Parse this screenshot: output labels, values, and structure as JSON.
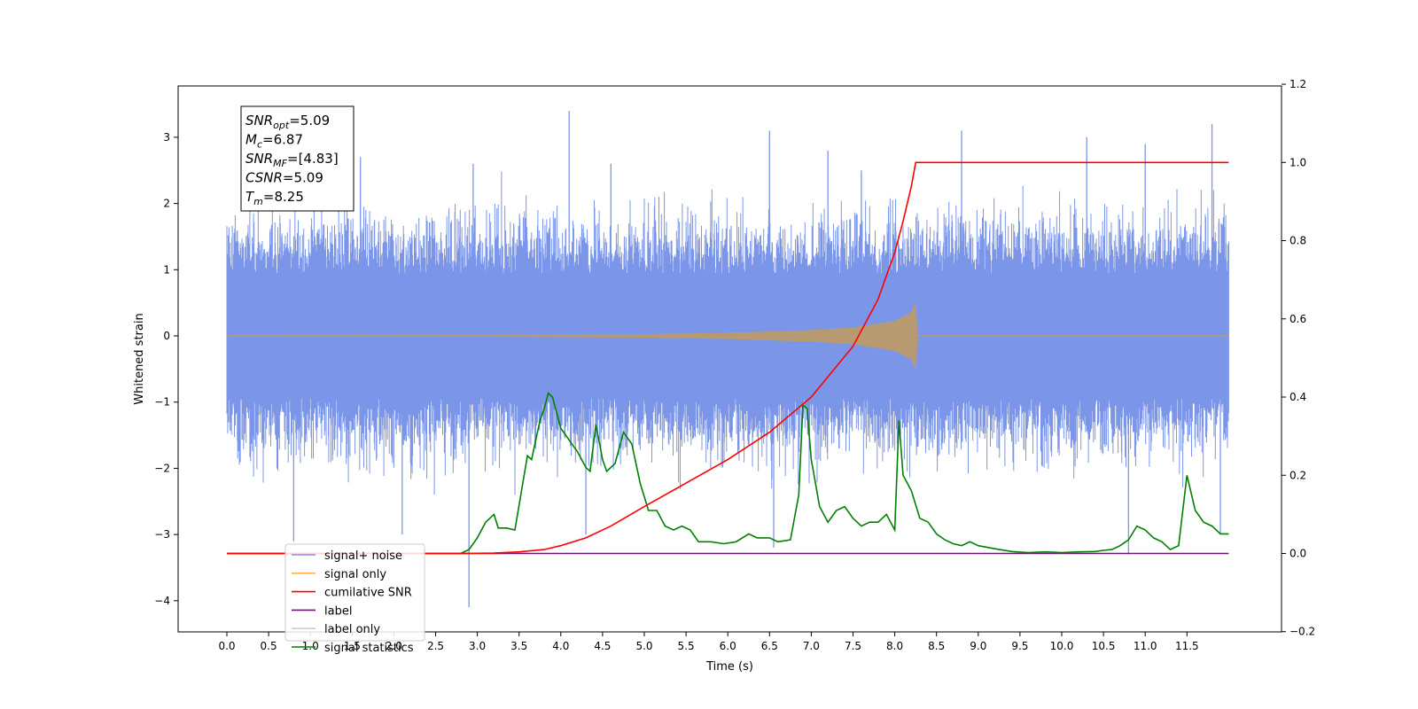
{
  "chart_data": {
    "type": "line",
    "xlabel": "Time (s)",
    "ylabel": "Whitened strain",
    "xlim": [
      -0.6,
      12.6
    ],
    "ylim_left": [
      -4.5,
      3.8
    ],
    "ylim_right": [
      -0.2,
      1.2
    ],
    "x_ticks": [
      "0.0",
      "0.5",
      "1.0",
      "1.5",
      "2.0",
      "2.5",
      "3.0",
      "3.5",
      "4.0",
      "4.5",
      "5.0",
      "5.5",
      "6.0",
      "6.5",
      "7.0",
      "7.5",
      "8.0",
      "8.5",
      "9.0",
      "9.5",
      "10.0",
      "10.5",
      "11.0",
      "11.5"
    ],
    "y_ticks_left": [
      "3",
      "2",
      "1",
      "0",
      "−1",
      "−2",
      "−3",
      "−4"
    ],
    "y_ticks_right": [
      "1.2",
      "1.0",
      "0.8",
      "0.6",
      "0.4",
      "0.2",
      "0.0",
      "−0.2"
    ],
    "grid": false,
    "legend_placement": "lower-left",
    "annotation": {
      "lines": [
        {
          "sym": "SNR",
          "sub": "opt",
          "val": "=5.09"
        },
        {
          "sym": "M",
          "sub": "c",
          "val": "=6.87"
        },
        {
          "sym": "SNR",
          "sub": "MF",
          "val": "=[4.83]"
        },
        {
          "sym": "CSNR",
          "sub": "",
          "val": "=5.09"
        },
        {
          "sym": "T",
          "sub": "m",
          "val": "=8.25"
        }
      ]
    },
    "series": [
      {
        "name": "signal+ noise",
        "axis": "left",
        "color": "#7b96e8",
        "envelope": {
          "t_start": 0.0,
          "t_end": 12.0,
          "typical_amplitude": 1.3,
          "max": 3.4,
          "min": -4.1
        },
        "spikes": [
          {
            "x": 0.8,
            "y": -3.1
          },
          {
            "x": 1.6,
            "y": 2.7
          },
          {
            "x": 2.1,
            "y": -3.0
          },
          {
            "x": 2.9,
            "y": -4.1
          },
          {
            "x": 2.95,
            "y": 2.6
          },
          {
            "x": 4.1,
            "y": 3.4
          },
          {
            "x": 4.3,
            "y": -3.0
          },
          {
            "x": 4.6,
            "y": 2.6
          },
          {
            "x": 6.5,
            "y": 3.1
          },
          {
            "x": 6.55,
            "y": -3.2
          },
          {
            "x": 7.2,
            "y": 2.8
          },
          {
            "x": 7.6,
            "y": 2.5
          },
          {
            "x": 8.8,
            "y": 3.1
          },
          {
            "x": 10.3,
            "y": 3.0
          },
          {
            "x": 10.8,
            "y": -3.3
          },
          {
            "x": 11.0,
            "y": 2.9
          },
          {
            "x": 11.8,
            "y": 3.2
          },
          {
            "x": 11.9,
            "y": -3.0
          }
        ]
      },
      {
        "name": "signal only",
        "axis": "left",
        "color": "#ffb347",
        "fill_color": "#b89a72",
        "chirp_amplitude": [
          {
            "t": 0.0,
            "a": 0.0
          },
          {
            "t": 3.0,
            "a": 0.005
          },
          {
            "t": 4.0,
            "a": 0.012
          },
          {
            "t": 5.0,
            "a": 0.02
          },
          {
            "t": 6.0,
            "a": 0.04
          },
          {
            "t": 7.0,
            "a": 0.08
          },
          {
            "t": 7.5,
            "a": 0.12
          },
          {
            "t": 8.0,
            "a": 0.22
          },
          {
            "t": 8.2,
            "a": 0.35
          },
          {
            "t": 8.25,
            "a": 0.48
          },
          {
            "t": 8.27,
            "a": 0.0
          },
          {
            "t": 12.0,
            "a": 0.0
          }
        ]
      },
      {
        "name": "cumilative SNR",
        "axis": "right",
        "color": "#ff0000",
        "points": [
          {
            "x": 0.0,
            "y": 0.0
          },
          {
            "x": 2.8,
            "y": 0.0
          },
          {
            "x": 3.2,
            "y": 0.001
          },
          {
            "x": 3.5,
            "y": 0.004
          },
          {
            "x": 3.8,
            "y": 0.01
          },
          {
            "x": 4.0,
            "y": 0.02
          },
          {
            "x": 4.3,
            "y": 0.04
          },
          {
            "x": 4.6,
            "y": 0.07
          },
          {
            "x": 5.0,
            "y": 0.12
          },
          {
            "x": 5.5,
            "y": 0.18
          },
          {
            "x": 6.0,
            "y": 0.24
          },
          {
            "x": 6.5,
            "y": 0.31
          },
          {
            "x": 7.0,
            "y": 0.4
          },
          {
            "x": 7.5,
            "y": 0.53
          },
          {
            "x": 7.8,
            "y": 0.65
          },
          {
            "x": 8.0,
            "y": 0.77
          },
          {
            "x": 8.1,
            "y": 0.85
          },
          {
            "x": 8.2,
            "y": 0.94
          },
          {
            "x": 8.25,
            "y": 1.0
          },
          {
            "x": 12.0,
            "y": 1.0
          }
        ]
      },
      {
        "name": "label",
        "axis": "right",
        "color": "#6a1a6a",
        "points": [
          {
            "x": 0.0,
            "y": 0.0
          },
          {
            "x": 12.0,
            "y": 0.0
          }
        ]
      },
      {
        "name": "label only",
        "axis": "right",
        "color": "#cccccc",
        "legend_only": true
      },
      {
        "name": "signal statistics",
        "axis": "right",
        "color": "#008000",
        "points": [
          {
            "x": 0.0,
            "y": 0.0
          },
          {
            "x": 2.8,
            "y": 0.0
          },
          {
            "x": 2.9,
            "y": 0.01
          },
          {
            "x": 3.0,
            "y": 0.04
          },
          {
            "x": 3.1,
            "y": 0.08
          },
          {
            "x": 3.2,
            "y": 0.1
          },
          {
            "x": 3.25,
            "y": 0.065
          },
          {
            "x": 3.35,
            "y": 0.065
          },
          {
            "x": 3.45,
            "y": 0.06
          },
          {
            "x": 3.6,
            "y": 0.25
          },
          {
            "x": 3.65,
            "y": 0.24
          },
          {
            "x": 3.75,
            "y": 0.34
          },
          {
            "x": 3.8,
            "y": 0.37
          },
          {
            "x": 3.85,
            "y": 0.41
          },
          {
            "x": 3.9,
            "y": 0.4
          },
          {
            "x": 4.0,
            "y": 0.32
          },
          {
            "x": 4.1,
            "y": 0.29
          },
          {
            "x": 4.2,
            "y": 0.26
          },
          {
            "x": 4.3,
            "y": 0.22
          },
          {
            "x": 4.35,
            "y": 0.21
          },
          {
            "x": 4.42,
            "y": 0.33
          },
          {
            "x": 4.5,
            "y": 0.24
          },
          {
            "x": 4.55,
            "y": 0.21
          },
          {
            "x": 4.65,
            "y": 0.23
          },
          {
            "x": 4.75,
            "y": 0.31
          },
          {
            "x": 4.85,
            "y": 0.28
          },
          {
            "x": 4.95,
            "y": 0.18
          },
          {
            "x": 5.05,
            "y": 0.11
          },
          {
            "x": 5.15,
            "y": 0.11
          },
          {
            "x": 5.25,
            "y": 0.07
          },
          {
            "x": 5.35,
            "y": 0.06
          },
          {
            "x": 5.45,
            "y": 0.07
          },
          {
            "x": 5.55,
            "y": 0.06
          },
          {
            "x": 5.65,
            "y": 0.03
          },
          {
            "x": 5.8,
            "y": 0.03
          },
          {
            "x": 5.95,
            "y": 0.025
          },
          {
            "x": 6.1,
            "y": 0.03
          },
          {
            "x": 6.25,
            "y": 0.05
          },
          {
            "x": 6.35,
            "y": 0.04
          },
          {
            "x": 6.5,
            "y": 0.04
          },
          {
            "x": 6.6,
            "y": 0.03
          },
          {
            "x": 6.75,
            "y": 0.035
          },
          {
            "x": 6.85,
            "y": 0.15
          },
          {
            "x": 6.9,
            "y": 0.38
          },
          {
            "x": 6.95,
            "y": 0.37
          },
          {
            "x": 7.0,
            "y": 0.24
          },
          {
            "x": 7.1,
            "y": 0.12
          },
          {
            "x": 7.2,
            "y": 0.08
          },
          {
            "x": 7.3,
            "y": 0.11
          },
          {
            "x": 7.4,
            "y": 0.12
          },
          {
            "x": 7.5,
            "y": 0.09
          },
          {
            "x": 7.6,
            "y": 0.07
          },
          {
            "x": 7.7,
            "y": 0.08
          },
          {
            "x": 7.8,
            "y": 0.08
          },
          {
            "x": 7.9,
            "y": 0.1
          },
          {
            "x": 8.0,
            "y": 0.06
          },
          {
            "x": 8.05,
            "y": 0.34
          },
          {
            "x": 8.1,
            "y": 0.2
          },
          {
            "x": 8.2,
            "y": 0.16
          },
          {
            "x": 8.3,
            "y": 0.09
          },
          {
            "x": 8.4,
            "y": 0.08
          },
          {
            "x": 8.5,
            "y": 0.05
          },
          {
            "x": 8.6,
            "y": 0.035
          },
          {
            "x": 8.7,
            "y": 0.025
          },
          {
            "x": 8.8,
            "y": 0.02
          },
          {
            "x": 8.9,
            "y": 0.03
          },
          {
            "x": 9.0,
            "y": 0.02
          },
          {
            "x": 9.2,
            "y": 0.012
          },
          {
            "x": 9.4,
            "y": 0.005
          },
          {
            "x": 9.6,
            "y": 0.002
          },
          {
            "x": 9.8,
            "y": 0.004
          },
          {
            "x": 10.0,
            "y": 0.002
          },
          {
            "x": 10.2,
            "y": 0.004
          },
          {
            "x": 10.4,
            "y": 0.005
          },
          {
            "x": 10.5,
            "y": 0.008
          },
          {
            "x": 10.6,
            "y": 0.01
          },
          {
            "x": 10.7,
            "y": 0.02
          },
          {
            "x": 10.8,
            "y": 0.035
          },
          {
            "x": 10.9,
            "y": 0.07
          },
          {
            "x": 11.0,
            "y": 0.06
          },
          {
            "x": 11.1,
            "y": 0.04
          },
          {
            "x": 11.2,
            "y": 0.03
          },
          {
            "x": 11.3,
            "y": 0.01
          },
          {
            "x": 11.4,
            "y": 0.02
          },
          {
            "x": 11.5,
            "y": 0.2
          },
          {
            "x": 11.6,
            "y": 0.11
          },
          {
            "x": 11.7,
            "y": 0.08
          },
          {
            "x": 11.8,
            "y": 0.07
          },
          {
            "x": 11.9,
            "y": 0.05
          },
          {
            "x": 12.0,
            "y": 0.05
          }
        ]
      }
    ]
  }
}
